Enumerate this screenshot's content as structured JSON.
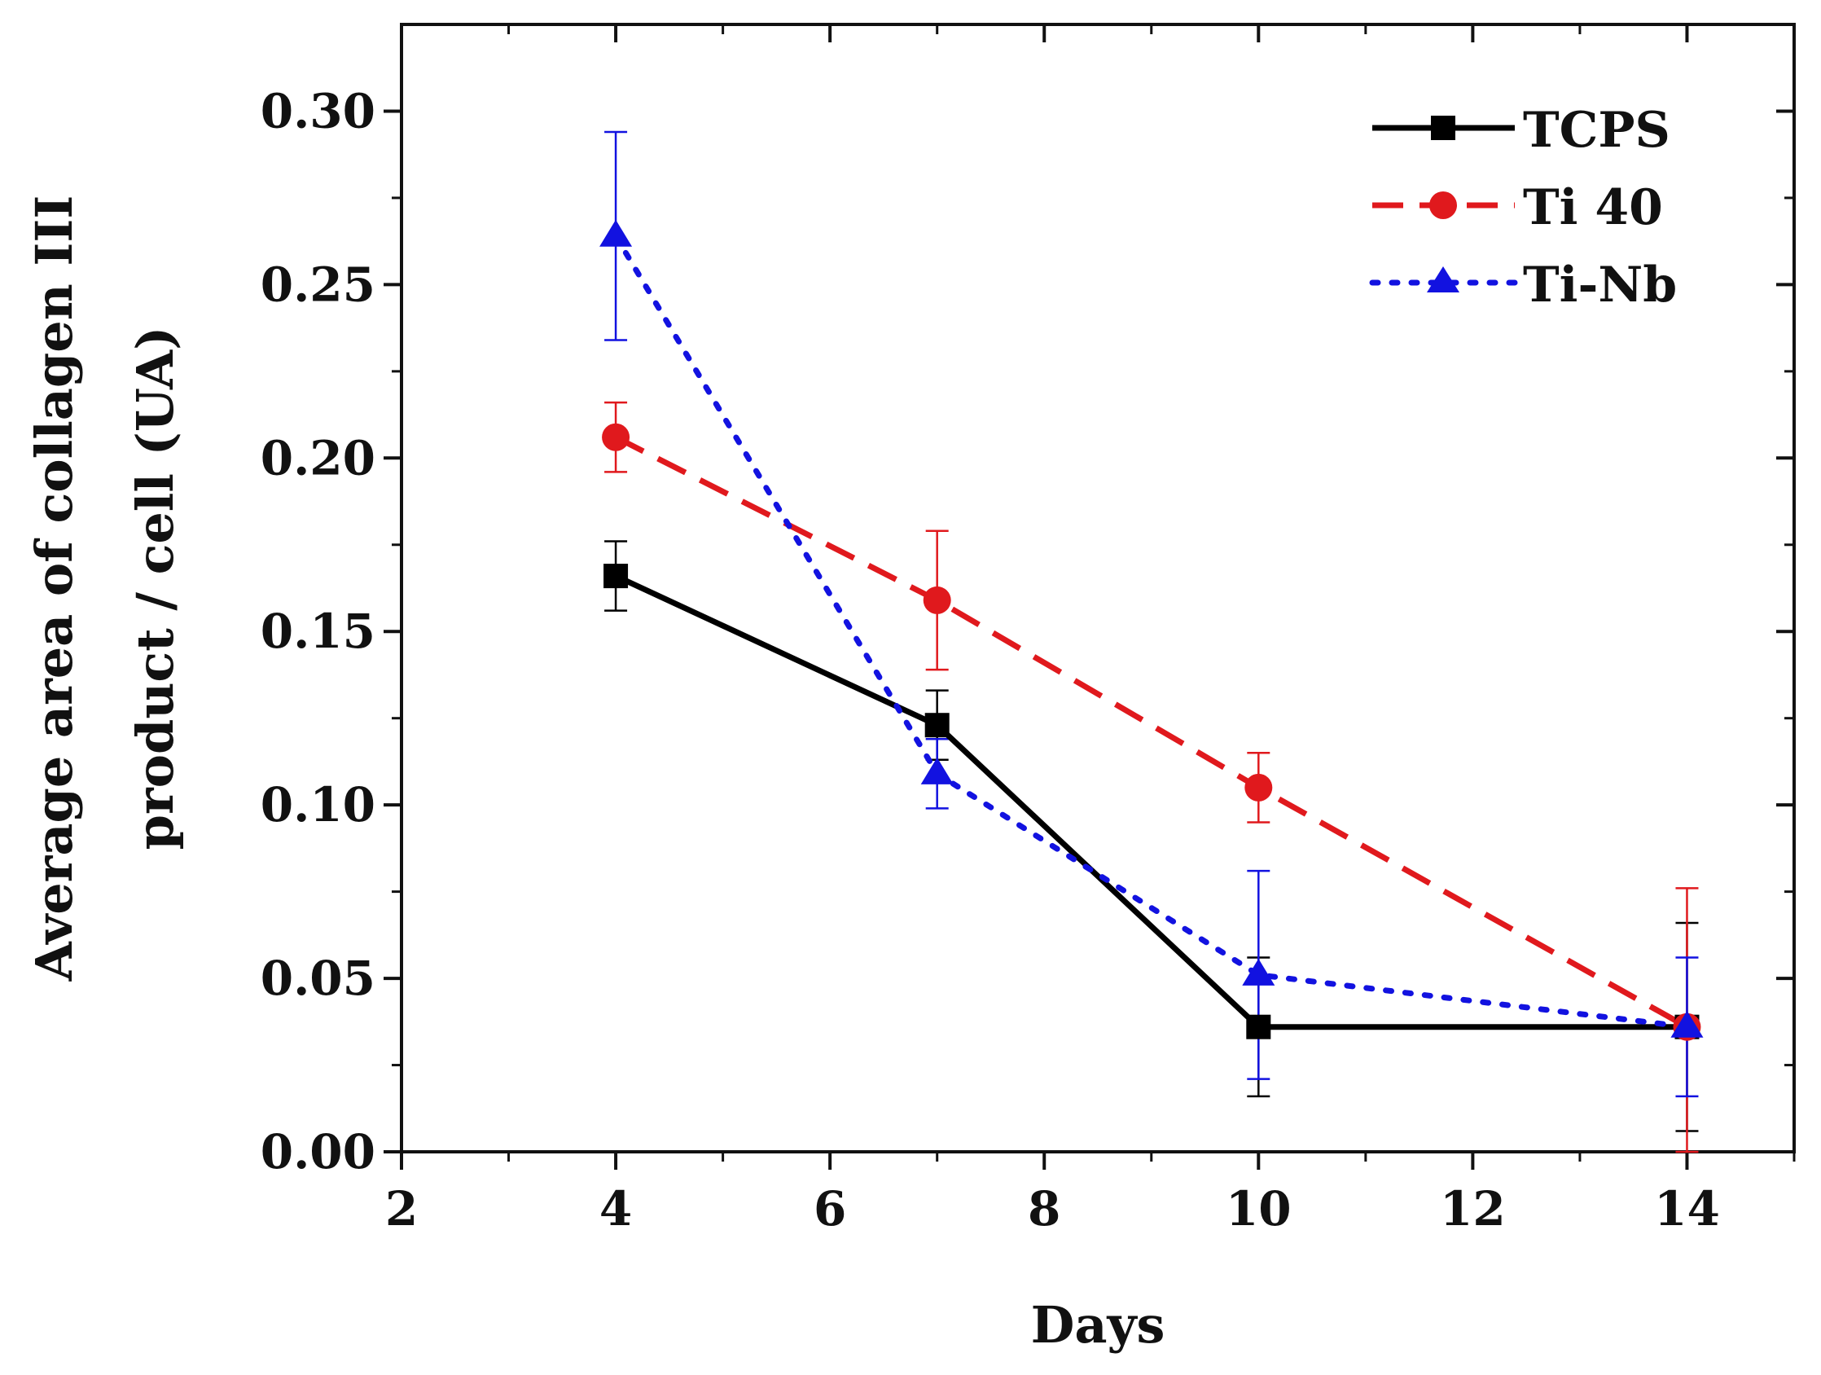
{
  "chart_data": {
    "type": "line",
    "title": "",
    "xlabel": "Days",
    "ylabel_lines": [
      "Average area of collagen III",
      "product / cell (UA)"
    ],
    "xlim": [
      2,
      15
    ],
    "ylim": [
      0,
      0.325
    ],
    "xticks": [
      2,
      4,
      6,
      8,
      10,
      12,
      14
    ],
    "xtick_labels": [
      "2",
      "4",
      "6",
      "8",
      "10",
      "12",
      "14"
    ],
    "yticks": [
      0,
      0.05,
      0.1,
      0.15,
      0.2,
      0.25,
      0.3
    ],
    "ytick_labels": [
      "0.00",
      "0.05",
      "0.10",
      "0.15",
      "0.20",
      "0.25",
      "0.30"
    ],
    "grid": false,
    "legend_position": "top-right",
    "series": [
      {
        "name": "TCPS",
        "color": "#000000",
        "line_style": "solid",
        "marker": "square",
        "x": [
          4,
          7,
          10,
          14
        ],
        "y": [
          0.166,
          0.123,
          0.036,
          0.036
        ],
        "err": [
          0.01,
          0.01,
          0.02,
          0.03
        ]
      },
      {
        "name": "Ti 40",
        "color": "#e0191d",
        "line_style": "dashed",
        "marker": "circle",
        "x": [
          4,
          7,
          10,
          14
        ],
        "y": [
          0.206,
          0.159,
          0.105,
          0.036
        ],
        "err": [
          0.01,
          0.02,
          0.01,
          0.04
        ]
      },
      {
        "name": "Ti-Nb",
        "color": "#1212e0",
        "line_style": "dotted",
        "marker": "triangle",
        "x": [
          4,
          7,
          10,
          14
        ],
        "y": [
          0.264,
          0.109,
          0.051,
          0.036
        ],
        "err": [
          0.03,
          0.01,
          0.03,
          0.02
        ]
      }
    ]
  }
}
